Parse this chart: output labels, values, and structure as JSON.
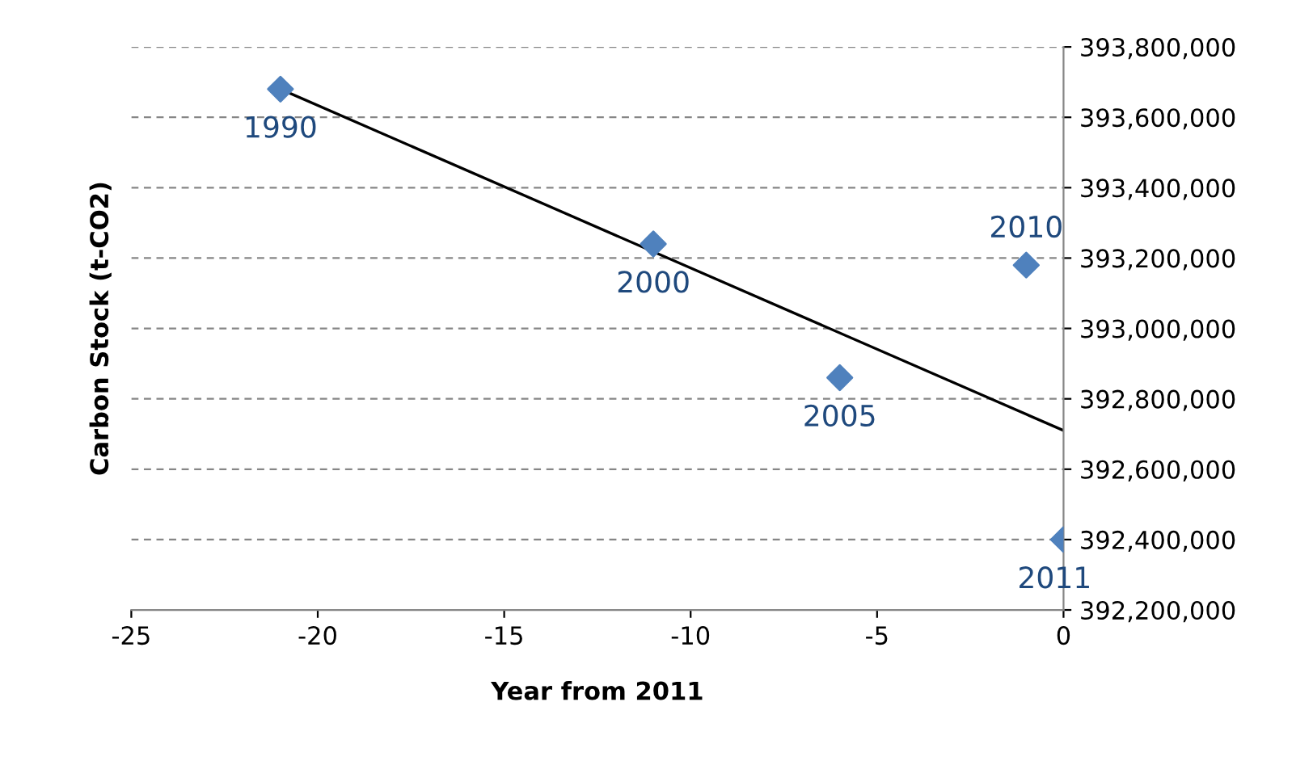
{
  "chart_data": {
    "type": "scatter",
    "xlabel": "Year from 2011",
    "ylabel": "Carbon Stock (t-CO2)",
    "series": [
      {
        "color": "#4f81bd",
        "marker": "diamond",
        "x": [
          -21,
          -11,
          -6,
          -1,
          0
        ],
        "values": [
          393680000,
          393240000,
          392860000,
          393180000,
          392400000
        ]
      },
      {
        "type": "line",
        "color": "#000000",
        "x": [
          -21,
          0
        ],
        "values": [
          393680000,
          392710000
        ]
      }
    ],
    "annotations": [
      {
        "text": "1990",
        "x": -21,
        "y": 393680000
      },
      {
        "text": "2000",
        "x": -11,
        "y": 393240000
      },
      {
        "text": "2005",
        "x": -6,
        "y": 392860000
      },
      {
        "text": "2010",
        "x": -1,
        "y": 393180000
      },
      {
        "text": "2011",
        "x": 0,
        "y": 392400000
      }
    ],
    "xlim": [
      -25,
      0
    ],
    "xticks": [
      -25,
      -20,
      -15,
      -10,
      -5,
      0
    ],
    "ylim": [
      392200000,
      393800000
    ],
    "yticks": [
      {
        "value": 392200000,
        "label": "392,200,000"
      },
      {
        "value": 392400000,
        "label": "392,400,000"
      },
      {
        "value": 392600000,
        "label": "392,600,000"
      },
      {
        "value": 392800000,
        "label": "392,800,000"
      },
      {
        "value": 393000000,
        "label": "393,000,000"
      },
      {
        "value": 393200000,
        "label": "393,200,000"
      },
      {
        "value": 393400000,
        "label": "393,400,000"
      },
      {
        "value": 393600000,
        "label": "393,600,000"
      },
      {
        "value": 393800000,
        "label": "393,800,000"
      }
    ],
    "grid": "y"
  }
}
